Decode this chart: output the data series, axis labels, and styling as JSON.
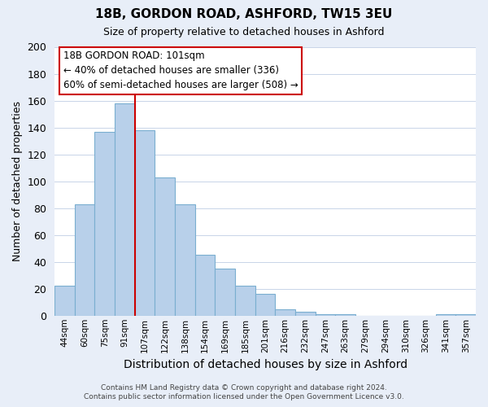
{
  "title": "18B, GORDON ROAD, ASHFORD, TW15 3EU",
  "subtitle": "Size of property relative to detached houses in Ashford",
  "xlabel": "Distribution of detached houses by size in Ashford",
  "ylabel": "Number of detached properties",
  "bar_labels": [
    "44sqm",
    "60sqm",
    "75sqm",
    "91sqm",
    "107sqm",
    "122sqm",
    "138sqm",
    "154sqm",
    "169sqm",
    "185sqm",
    "201sqm",
    "216sqm",
    "232sqm",
    "247sqm",
    "263sqm",
    "279sqm",
    "294sqm",
    "310sqm",
    "326sqm",
    "341sqm",
    "357sqm"
  ],
  "bar_values": [
    22,
    83,
    137,
    158,
    138,
    103,
    83,
    45,
    35,
    22,
    16,
    5,
    3,
    1,
    1,
    0,
    0,
    0,
    0,
    1,
    1
  ],
  "bar_color": "#b8d0ea",
  "bar_edge_color": "#7aaed0",
  "vline_index": 4,
  "vline_color": "#cc0000",
  "ylim": [
    0,
    200
  ],
  "yticks": [
    0,
    20,
    40,
    60,
    80,
    100,
    120,
    140,
    160,
    180,
    200
  ],
  "annotation_title": "18B GORDON ROAD: 101sqm",
  "annotation_line1": "← 40% of detached houses are smaller (336)",
  "annotation_line2": "60% of semi-detached houses are larger (508) →",
  "annotation_box_color": "#ffffff",
  "annotation_box_edge": "#cc0000",
  "footer_line1": "Contains HM Land Registry data © Crown copyright and database right 2024.",
  "footer_line2": "Contains public sector information licensed under the Open Government Licence v3.0.",
  "bg_color": "#e8eef8",
  "plot_bg_color": "#ffffff",
  "grid_color": "#c8d4e8"
}
